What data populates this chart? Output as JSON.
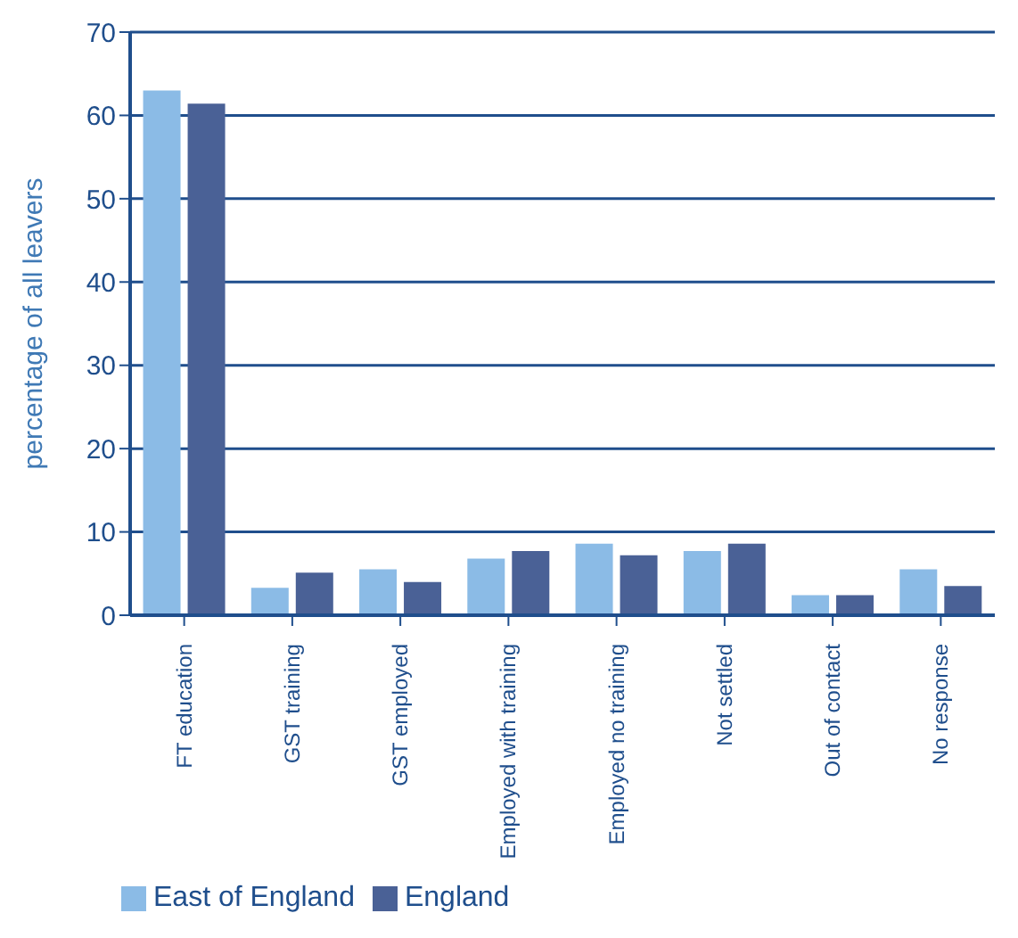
{
  "chart_data": {
    "type": "bar",
    "ylabel": "percentage of all leavers",
    "categories": [
      "FT education",
      "GST training",
      "GST employed",
      "Employed with training",
      "Employed no training",
      "Not settled",
      "Out of contact",
      "No response"
    ],
    "series": [
      {
        "name": "East of England",
        "color": "#8bbbe6",
        "values": [
          63,
          3.3,
          5.5,
          6.8,
          8.6,
          7.7,
          2.4,
          5.5
        ]
      },
      {
        "name": "England",
        "color": "#4a6196",
        "values": [
          61.4,
          5.1,
          4.0,
          7.7,
          7.2,
          8.6,
          2.4,
          3.5
        ]
      }
    ],
    "ylim": [
      0,
      70
    ],
    "yticks": [
      0,
      10,
      20,
      30,
      40,
      50,
      60,
      70
    ],
    "grid": "y",
    "legend": "bottom left"
  }
}
